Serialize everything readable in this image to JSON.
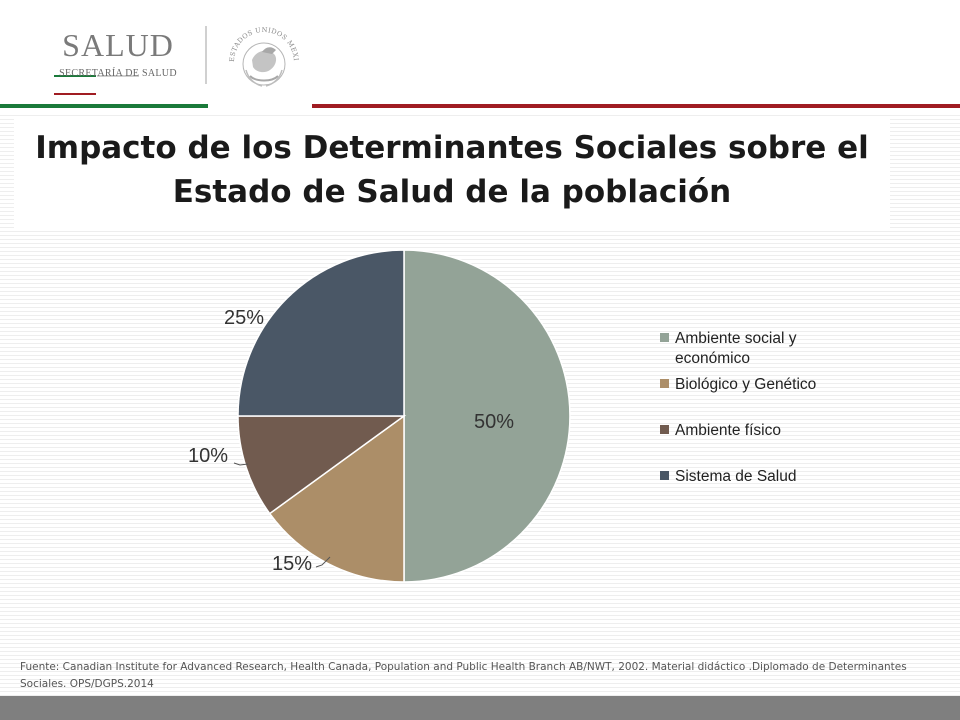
{
  "header": {
    "logo_word": "SALUD",
    "logo_subtitle": "SECRETARÍA DE SALUD",
    "seal_caption": "ESTADOS UNIDOS MEXICANOS",
    "colors": {
      "green": "#1a7a3a",
      "red": "#a01c22",
      "logo_gray": "#7a7a7a"
    }
  },
  "slide": {
    "title_line1": "Impacto de los Determinantes Sociales sobre el",
    "title_line2": "Estado de Salud de la población"
  },
  "chart_data": {
    "type": "pie",
    "title": "",
    "start_angle_deg": 0,
    "direction": "clockwise",
    "slices": [
      {
        "name": "Ambiente social y económico",
        "value": 50,
        "label": "50%",
        "color": "#93a397",
        "legend_lines": [
          "Ambiente social y",
          "económico"
        ]
      },
      {
        "name": "Biológico y Genético",
        "value": 15,
        "label": "15%",
        "color": "#ac8e68",
        "legend_lines": [
          "Biológico y Genético"
        ]
      },
      {
        "name": "Ambiente físico",
        "value": 10,
        "label": "10%",
        "color": "#715b4f",
        "legend_lines": [
          "Ambiente físico"
        ]
      },
      {
        "name": "Sistema de Salud",
        "value": 25,
        "label": "25%",
        "color": "#4a5766",
        "legend_lines": [
          "Sistema de Salud"
        ]
      }
    ],
    "legend_position": "right"
  },
  "footer": {
    "source": "Fuente: Canadian Institute for Advanced Research, Health Canada, Population and Public Health Branch AB/NWT, 2002.  Material didáctico .Diplomado de Determinantes Sociales. OPS/DGPS.2014"
  }
}
